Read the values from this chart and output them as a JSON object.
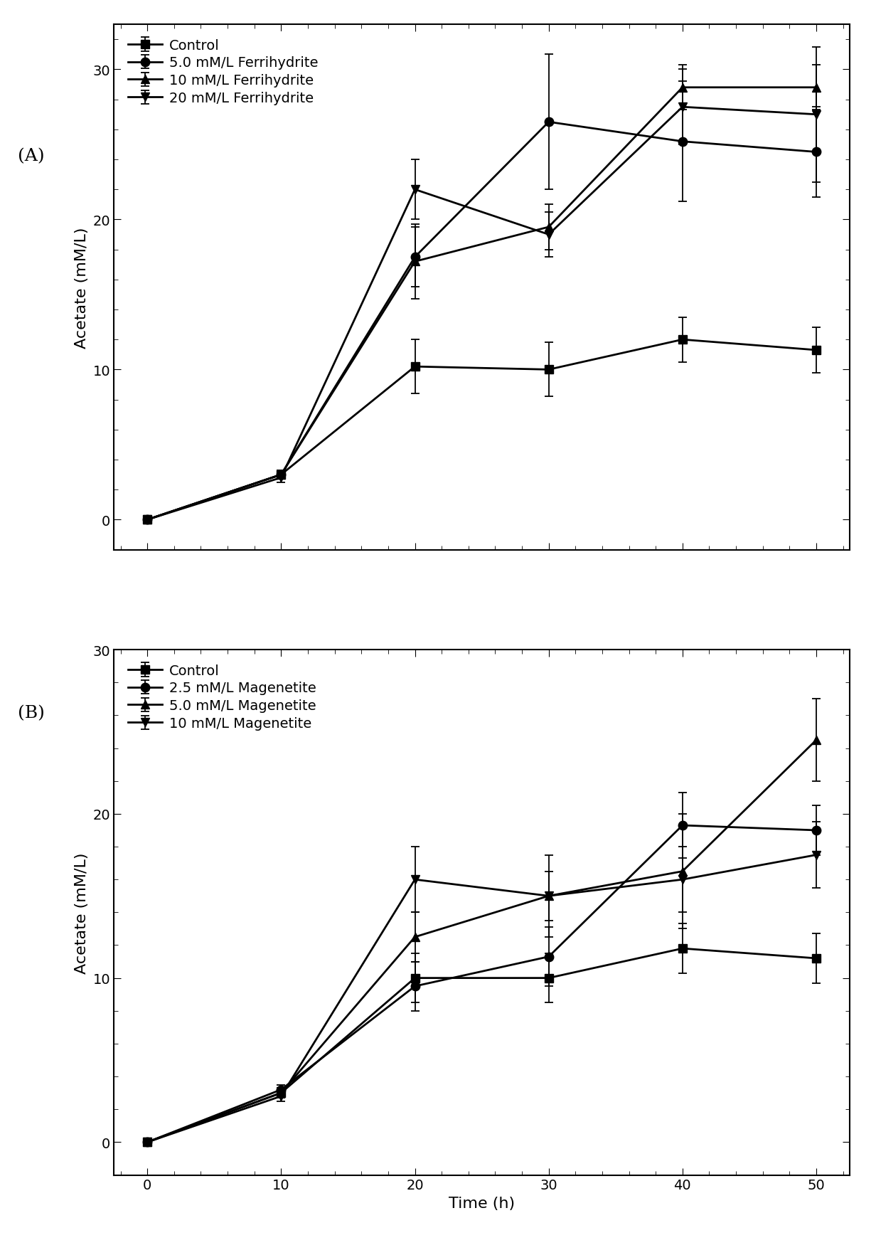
{
  "time": [
    0,
    10,
    20,
    30,
    40,
    50
  ],
  "panel_A": {
    "label": "(A)",
    "ylabel": "Acetate (mM/L)",
    "ylim": [
      -2,
      33
    ],
    "yticks": [
      0,
      10,
      20,
      30
    ],
    "series": [
      {
        "label": "Control",
        "marker": "s",
        "y": [
          0,
          3.0,
          10.2,
          10.0,
          12.0,
          11.3
        ],
        "yerr": [
          0.0,
          0.3,
          1.8,
          1.8,
          1.5,
          1.5
        ]
      },
      {
        "label": "5.0 mM/L Ferrihydrite",
        "marker": "o",
        "y": [
          0,
          3.0,
          17.5,
          26.5,
          25.2,
          24.5
        ],
        "yerr": [
          0.0,
          0.3,
          2.0,
          4.5,
          4.0,
          3.0
        ]
      },
      {
        "label": "10 mM/L Ferrihydrite",
        "marker": "^",
        "y": [
          0,
          3.0,
          17.2,
          19.5,
          28.8,
          28.8
        ],
        "yerr": [
          0.0,
          0.3,
          2.5,
          1.5,
          1.5,
          1.5
        ]
      },
      {
        "label": "20 mM/L Ferrihydrite",
        "marker": "v",
        "y": [
          0,
          2.8,
          22.0,
          19.0,
          27.5,
          27.0
        ],
        "yerr": [
          0.0,
          0.3,
          2.0,
          1.5,
          2.5,
          4.5
        ]
      }
    ]
  },
  "panel_B": {
    "label": "(B)",
    "ylabel": "Acetate (mM/L)",
    "xlabel": "Time (h)",
    "ylim": [
      -2,
      30
    ],
    "yticks": [
      0,
      10,
      20,
      30
    ],
    "series": [
      {
        "label": "Control",
        "marker": "s",
        "y": [
          0,
          3.0,
          10.0,
          10.0,
          11.8,
          11.2
        ],
        "yerr": [
          0.0,
          0.3,
          1.5,
          1.5,
          1.5,
          1.5
        ]
      },
      {
        "label": "2.5 mM/L Magenetite",
        "marker": "o",
        "y": [
          0,
          3.2,
          9.5,
          11.3,
          19.3,
          19.0
        ],
        "yerr": [
          0.0,
          0.3,
          1.5,
          1.8,
          2.0,
          1.5
        ]
      },
      {
        "label": "5.0 mM/L Magenetite",
        "marker": "^",
        "y": [
          0,
          3.0,
          12.5,
          15.0,
          16.5,
          24.5
        ],
        "yerr": [
          0.0,
          0.3,
          1.5,
          1.5,
          3.5,
          2.5
        ]
      },
      {
        "label": "10 mM/L Magenetite",
        "marker": "v",
        "y": [
          0,
          2.8,
          16.0,
          15.0,
          16.0,
          17.5
        ],
        "yerr": [
          0.0,
          0.3,
          2.0,
          2.5,
          2.0,
          2.0
        ]
      }
    ]
  },
  "line_color": "#000000",
  "line_width": 2.0,
  "marker_size": 9,
  "legend_fontsize": 14,
  "tick_fontsize": 14,
  "label_fontsize": 16,
  "panel_label_fontsize": 18,
  "capsize": 4,
  "xticks": [
    0,
    10,
    20,
    30,
    40,
    50
  ],
  "figsize": [
    12.32,
    17.58
  ],
  "dpi": 100
}
